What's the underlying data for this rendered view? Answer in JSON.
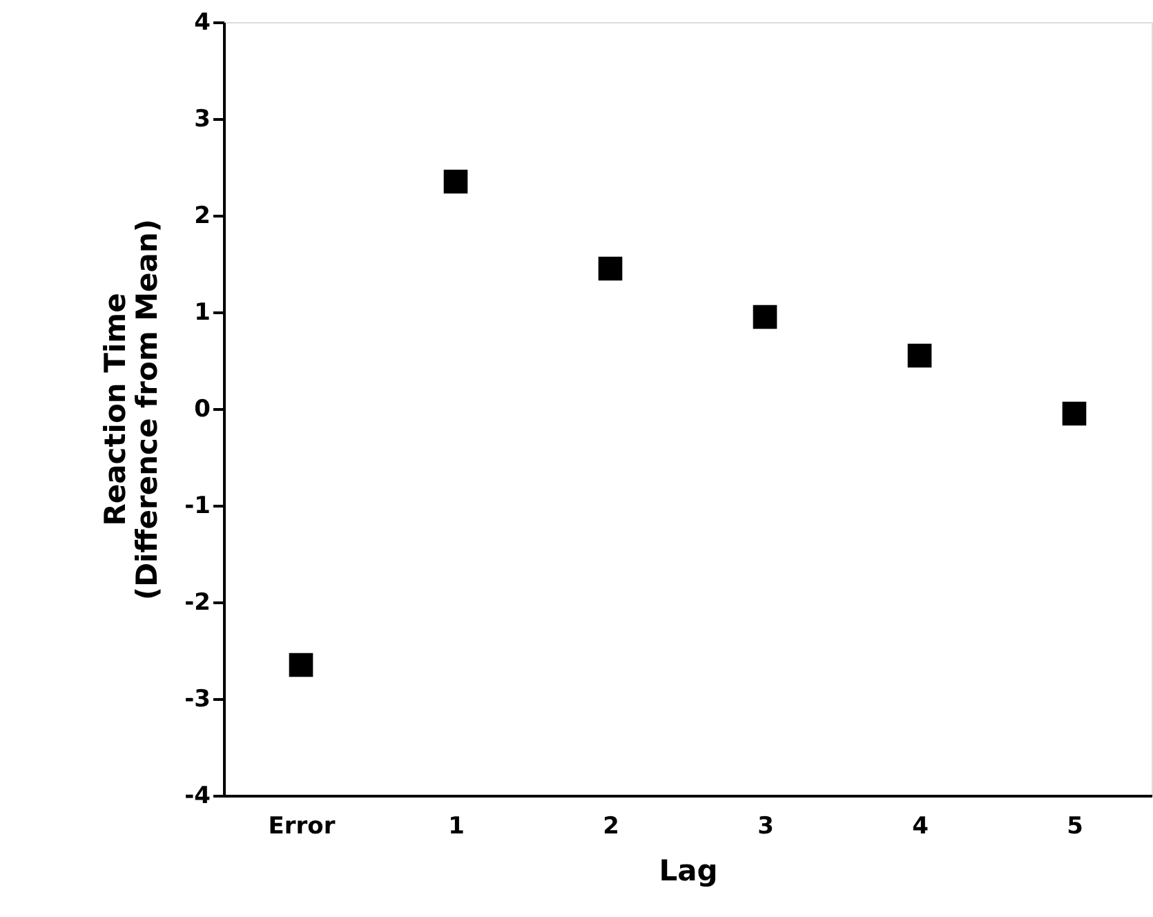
{
  "chart_data": {
    "type": "scatter",
    "xlabel": "Lag",
    "ylabel": "Reaction Time\n(Difference from Mean)",
    "categories": [
      "Error",
      "1",
      "2",
      "3",
      "4",
      "5"
    ],
    "series": [
      {
        "color": "#000000",
        "values": [
          -2.65,
          2.35,
          1.45,
          0.95,
          0.55,
          -0.05
        ]
      }
    ],
    "marker": "square",
    "ylim": [
      -4,
      4
    ],
    "yticks": [
      -4,
      -3,
      -2,
      -1,
      0,
      1,
      2,
      3,
      4
    ],
    "grid": false
  }
}
